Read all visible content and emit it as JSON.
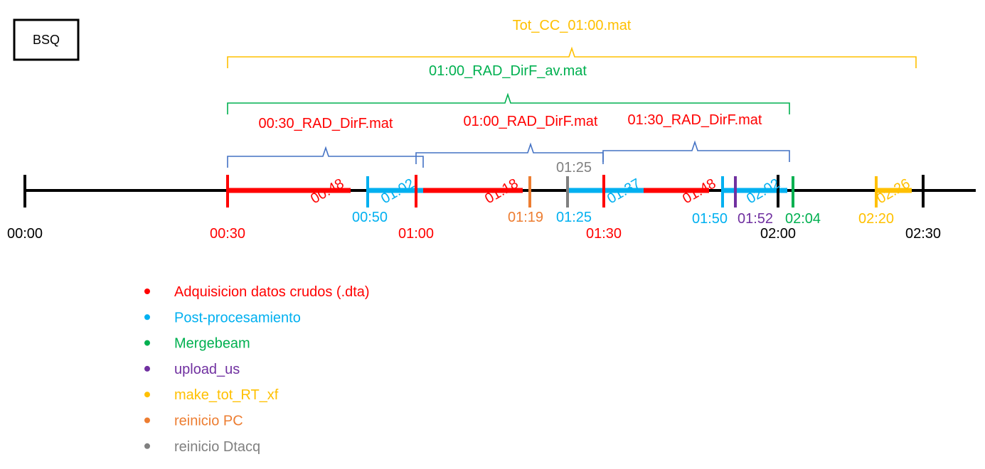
{
  "badge": "BSQ",
  "brackets": [
    {
      "label": "Tot_CC_01:00.mat",
      "color": "#ffc000"
    },
    {
      "label": "01:00_RAD_DirF_av.mat",
      "color": "#00b050"
    },
    {
      "label": "00:30_RAD_DirF.mat",
      "color": "#4472c4",
      "label_color": "#ff0000"
    },
    {
      "label": "01:00_RAD_DirF.mat",
      "color": "#4472c4",
      "label_color": "#ff0000"
    },
    {
      "label": "01:30_RAD_DirF.mat",
      "color": "#4472c4",
      "label_color": "#ff0000"
    }
  ],
  "axis_ticks": [
    {
      "label": "00:00",
      "color": "#000000"
    },
    {
      "label": "00:30",
      "color": "#ff0000"
    },
    {
      "label": "01:00",
      "color": "#ff0000"
    },
    {
      "label": "01:30",
      "color": "#ff0000"
    },
    {
      "label": "02:00",
      "color": "#000000"
    },
    {
      "label": "02:30",
      "color": "#000000"
    }
  ],
  "time_labels": [
    {
      "text": "00:48",
      "color": "#ff0000"
    },
    {
      "text": "00:50",
      "color": "#00b0f0"
    },
    {
      "text": "01:02",
      "color": "#00b0f0"
    },
    {
      "text": "01:18",
      "color": "#ff0000"
    },
    {
      "text": "01:19",
      "color": "#ed7d31"
    },
    {
      "text": "01:25",
      "color": "#808080"
    },
    {
      "text": "01:25",
      "color": "#00b0f0"
    },
    {
      "text": "01:37",
      "color": "#00b0f0"
    },
    {
      "text": "01:48",
      "color": "#ff0000"
    },
    {
      "text": "01:50",
      "color": "#00b0f0"
    },
    {
      "text": "01:52",
      "color": "#7030a0"
    },
    {
      "text": "02:02",
      "color": "#00b0f0"
    },
    {
      "text": "02:04",
      "color": "#00b050"
    },
    {
      "text": "02:20",
      "color": "#ffc000"
    },
    {
      "text": "02:26",
      "color": "#ffc000"
    }
  ],
  "legend": [
    {
      "label": "Adquisicion datos crudos (.dta)",
      "color": "#ff0000"
    },
    {
      "label": "Post-procesamiento",
      "color": "#00b0f0"
    },
    {
      "label": "Mergebeam",
      "color": "#00b050"
    },
    {
      "label": "upload_us",
      "color": "#7030a0"
    },
    {
      "label": "make_tot_RT_xf",
      "color": "#ffc000"
    },
    {
      "label": "reinicio PC",
      "color": "#ed7d31"
    },
    {
      "label": "reinicio Dtacq",
      "color": "#808080"
    }
  ]
}
